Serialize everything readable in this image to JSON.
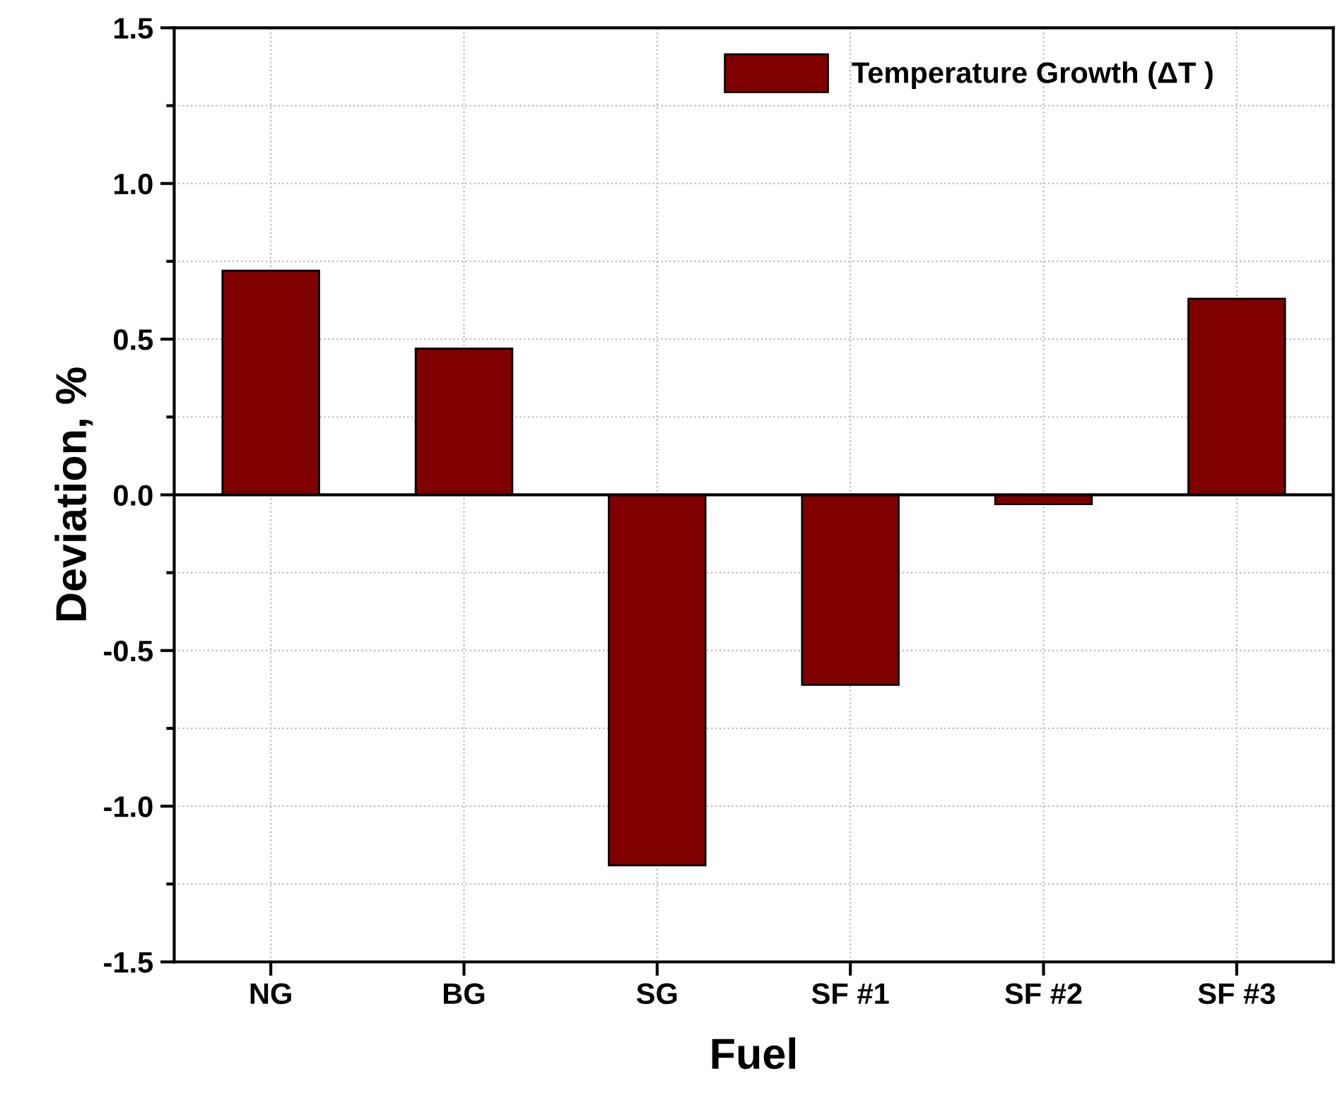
{
  "chart_data": {
    "type": "bar",
    "xlabel": "Fuel",
    "ylabel": "Deviation, %",
    "categories": [
      "NG",
      "BG",
      "SG",
      "SF #1",
      "SF #2",
      "SF #3"
    ],
    "series": [
      {
        "name": "Temperature Growth (ΔT )",
        "color": "#800000",
        "values": [
          0.72,
          0.47,
          -1.19,
          -0.61,
          -0.03,
          0.63
        ]
      }
    ],
    "ylim": [
      -1.5,
      1.5
    ],
    "yticks": [
      {
        "value": -1.5,
        "label": "-1.5"
      },
      {
        "value": -1.0,
        "label": "-1.0"
      },
      {
        "value": -0.5,
        "label": "-0.5"
      },
      {
        "value": 0,
        "label": "0.0"
      },
      {
        "value": 0.5,
        "label": "0.5"
      },
      {
        "value": 1.0,
        "label": "1.0"
      },
      {
        "value": 1.5,
        "label": "1.5"
      }
    ],
    "ref_lines": [
      {
        "axis": "y",
        "value": 0,
        "label": null,
        "color": "#000000"
      }
    ],
    "grid": true,
    "legend": "top right"
  }
}
